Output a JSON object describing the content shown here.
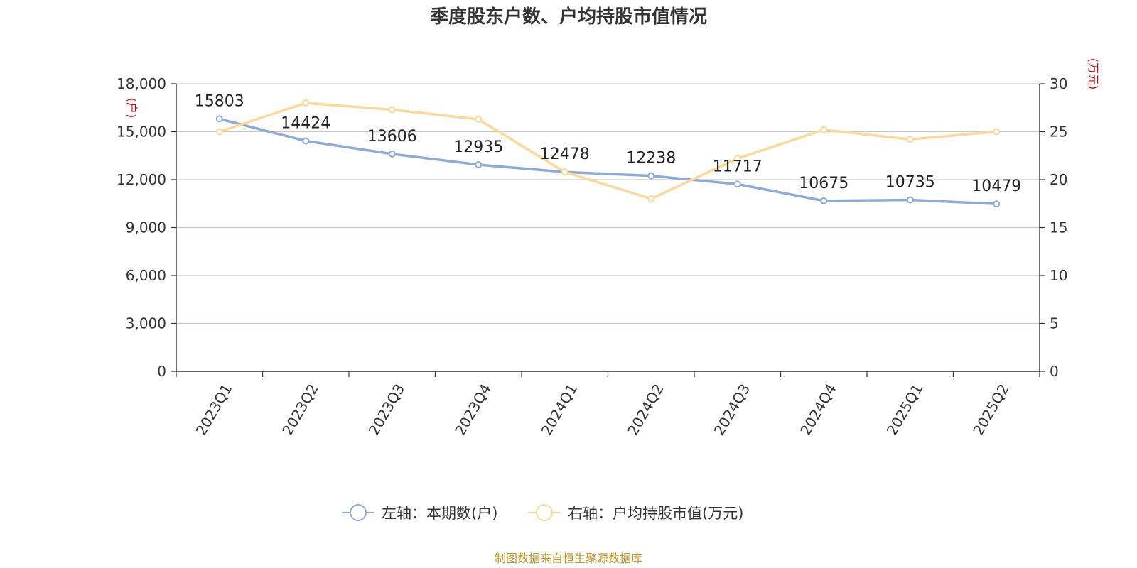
{
  "chart_data": {
    "type": "line",
    "title": "季度股东户数、户均持股市值情况",
    "categories": [
      "2023Q1",
      "2023Q2",
      "2023Q3",
      "2023Q4",
      "2024Q1",
      "2024Q2",
      "2024Q3",
      "2024Q4",
      "2025Q1",
      "2025Q2"
    ],
    "y_left": {
      "unit_label": "(户)",
      "ylim": [
        0,
        18000
      ],
      "ticks": [
        0,
        3000,
        6000,
        9000,
        12000,
        15000,
        18000
      ],
      "tick_labels": [
        "0",
        "3,000",
        "6,000",
        "9,000",
        "12,000",
        "15,000",
        "18,000"
      ]
    },
    "y_right": {
      "unit_label": "(万元)",
      "ylim": [
        0,
        30
      ],
      "ticks": [
        0,
        5,
        10,
        15,
        20,
        25,
        30
      ],
      "tick_labels": [
        "0",
        "5",
        "10",
        "15",
        "20",
        "25",
        "30"
      ]
    },
    "grid": true,
    "series": [
      {
        "name": "左轴：本期数(户)",
        "axis": "left",
        "color": "#8eaadb",
        "values": [
          15803,
          14424,
          13606,
          12935,
          12478,
          12238,
          11717,
          10675,
          10735,
          10479
        ],
        "data_labels": [
          "15803",
          "14424",
          "13606",
          "12935",
          "12478",
          "12238",
          "11717",
          "10675",
          "10735",
          "10479"
        ]
      },
      {
        "name": "右轴：户均持股市值(万元)",
        "axis": "right",
        "color": "#fcd899",
        "values": [
          25.0,
          28.0,
          27.3,
          26.3,
          20.8,
          18.0,
          22.2,
          25.2,
          24.2,
          25.0
        ]
      }
    ],
    "legend_position": "bottom-center",
    "source": "制图数据来自恒生聚源数据库"
  }
}
